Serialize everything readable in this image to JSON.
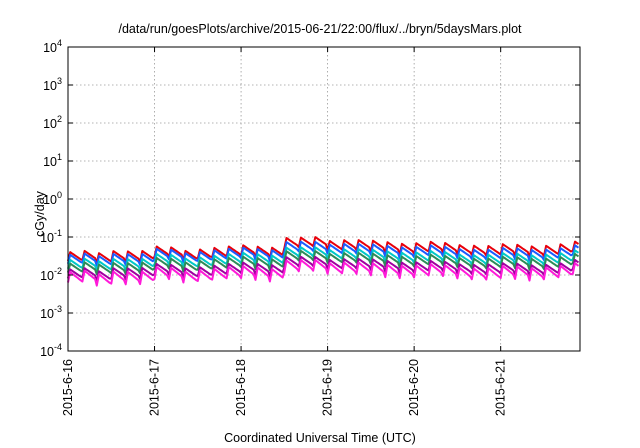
{
  "chart_data": {
    "type": "line",
    "title": "/data/run/goesPlots/archive/2015-06-21/22:00/flux/../bryn/5daysMars.plot",
    "xlabel": "Coordinated Universal Time (UTC)",
    "ylabel": "cGy/day",
    "yscale": "log",
    "ylim": [
      0.0001,
      10000
    ],
    "y_ticks": [
      {
        "base": "10",
        "exp": "-4"
      },
      {
        "base": "10",
        "exp": "-3"
      },
      {
        "base": "10",
        "exp": "-2"
      },
      {
        "base": "10",
        "exp": "-1"
      },
      {
        "base": "10",
        "exp": "0"
      },
      {
        "base": "10",
        "exp": "1"
      },
      {
        "base": "10",
        "exp": "2"
      },
      {
        "base": "10",
        "exp": "3"
      },
      {
        "base": "10",
        "exp": "4"
      }
    ],
    "x_ticks": [
      "2015-6-16",
      "2015-6-17",
      "2015-6-18",
      "2015-6-19",
      "2015-6-20",
      "2015-6-21"
    ],
    "xlim": [
      "2015-06-16 00:00",
      "2015-06-21 22:00"
    ],
    "grid": true,
    "cycle_hours": 4,
    "series": [
      {
        "color": "#e8000b",
        "base": [
          0.04,
          0.036,
          0.045,
          0.042,
          0.052,
          0.046,
          0.05,
          0.052,
          0.06,
          0.055,
          0.09,
          0.1,
          0.085,
          0.078,
          0.075,
          0.072,
          0.07,
          0.066,
          0.064,
          0.058,
          0.06,
          0.06,
          0.063,
          0.07
        ],
        "trough": 0.55
      },
      {
        "color": "#1a5cff",
        "base": [
          0.034,
          0.03,
          0.038,
          0.035,
          0.045,
          0.04,
          0.043,
          0.045,
          0.052,
          0.047,
          0.07,
          0.075,
          0.068,
          0.062,
          0.06,
          0.058,
          0.056,
          0.052,
          0.05,
          0.046,
          0.048,
          0.048,
          0.05,
          0.056
        ],
        "trough": 0.55
      },
      {
        "color": "#00c8c8",
        "base": [
          0.025,
          0.022,
          0.028,
          0.026,
          0.033,
          0.029,
          0.031,
          0.033,
          0.038,
          0.034,
          0.05,
          0.054,
          0.049,
          0.045,
          0.043,
          0.042,
          0.04,
          0.038,
          0.036,
          0.034,
          0.035,
          0.035,
          0.037,
          0.041
        ],
        "trough": 0.55
      },
      {
        "color": "#2e8b57",
        "base": [
          0.02,
          0.018,
          0.022,
          0.021,
          0.026,
          0.023,
          0.025,
          0.026,
          0.03,
          0.027,
          0.04,
          0.043,
          0.039,
          0.036,
          0.034,
          0.033,
          0.032,
          0.03,
          0.029,
          0.027,
          0.028,
          0.028,
          0.029,
          0.033
        ],
        "trough": 0.55
      },
      {
        "color": "#a000a0",
        "base": [
          0.014,
          0.012,
          0.016,
          0.015,
          0.018,
          0.016,
          0.017,
          0.018,
          0.021,
          0.019,
          0.028,
          0.03,
          0.027,
          0.025,
          0.024,
          0.023,
          0.022,
          0.021,
          0.02,
          0.019,
          0.019,
          0.019,
          0.02,
          0.023
        ],
        "trough": 0.55
      },
      {
        "color": "#ff1ad9",
        "base": [
          0.012,
          0.01,
          0.013,
          0.012,
          0.015,
          0.013,
          0.014,
          0.015,
          0.017,
          0.015,
          0.023,
          0.025,
          0.022,
          0.02,
          0.019,
          0.019,
          0.018,
          0.017,
          0.016,
          0.015,
          0.016,
          0.016,
          0.017,
          0.019
        ],
        "trough": 0.5
      }
    ]
  }
}
